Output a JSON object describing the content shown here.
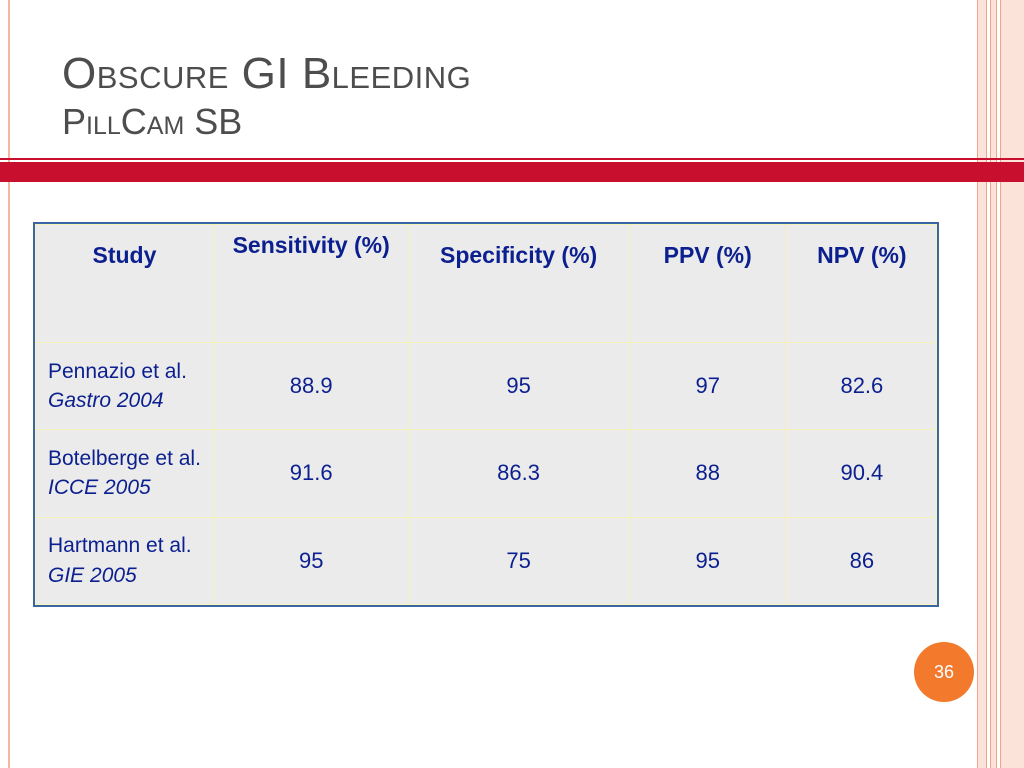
{
  "slide": {
    "title_line1": "Obscure GI Bleeding",
    "title_line2": "PillCam  SB",
    "page_number": "36",
    "colors": {
      "accent_red": "#c8102e",
      "table_text": "#0b1f8f",
      "badge_orange": "#f37a2c"
    }
  },
  "table": {
    "headers": [
      "Study",
      "Sensitivity (%)",
      "Specificity (%)",
      "PPV (%)",
      "NPV (%)"
    ],
    "rows": [
      {
        "study": "Pennazio et al.",
        "source": "Gastro 2004",
        "sensitivity": "88.9",
        "specificity": "95",
        "ppv": "97",
        "npv": "82.6"
      },
      {
        "study": "Botelberge et al.",
        "source": "ICCE 2005",
        "sensitivity": "91.6",
        "specificity": "86.3",
        "ppv": "88",
        "npv": "90.4"
      },
      {
        "study": "Hartmann et al.",
        "source": "GIE 2005",
        "sensitivity": "95",
        "specificity": "75",
        "ppv": "95",
        "npv": "86"
      }
    ]
  }
}
